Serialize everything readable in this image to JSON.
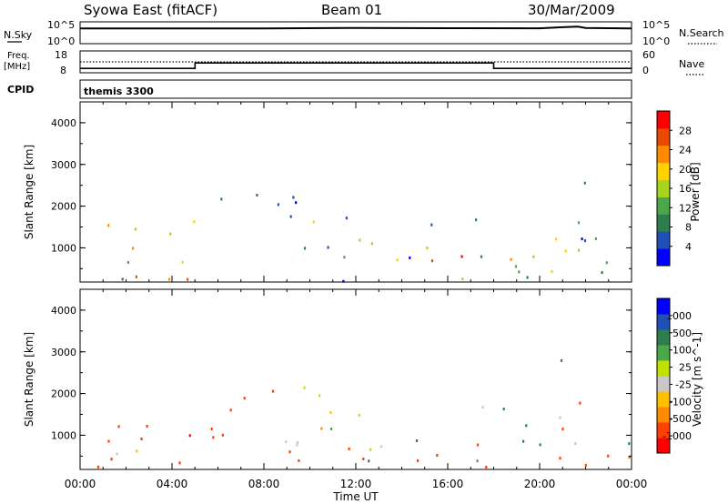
{
  "header": {
    "title": "Syowa East (fitACF)",
    "beam": "Beam 01",
    "date": "30/Mar/2009"
  },
  "noise_panel": {
    "left_label": "N.Sky",
    "left_ticks": [
      "10^5",
      "10^0"
    ],
    "right_label": "N.Search",
    "right_ticks": [
      "10^5",
      "10^0"
    ]
  },
  "freq_panel": {
    "left_label_1": "Freq.",
    "left_label_2": "[MHz]",
    "left_ticks": [
      "18",
      "8"
    ],
    "right_label": "Nave",
    "right_ticks": [
      "60",
      "0"
    ]
  },
  "cpid": {
    "label": "CPID",
    "program": "themis 3300"
  },
  "colors": {
    "power_scale": [
      "#0000ff",
      "#1f4fb8",
      "#2e7d4f",
      "#4aa84a",
      "#a8d41e",
      "#ffd200",
      "#ff8c00",
      "#e84a00",
      "#ff0000"
    ],
    "velocity_scale": [
      "#ff0000",
      "#ff4000",
      "#ff8c00",
      "#ffc000",
      "#c8c8c8",
      "#c0e000",
      "#4aa84a",
      "#2e7d4f",
      "#1f4fb8",
      "#0000ff"
    ],
    "ground_scatter": "#c8c8c8"
  },
  "chart_data": [
    {
      "type": "line",
      "panel": "noise",
      "y_scale": "log",
      "ylim": [
        1,
        100000
      ],
      "x_start": "00:00",
      "x_end": "24:00",
      "series": [
        {
          "time": [
            "00:00",
            "04:00",
            "08:00",
            "12:00",
            "16:00",
            "20:00",
            "21:00",
            "21:40",
            "22:00",
            "24:00"
          ],
          "values": [
            3000,
            3200,
            3100,
            4000,
            3500,
            3300,
            6000,
            8000,
            4000,
            3200
          ]
        }
      ]
    },
    {
      "type": "line",
      "panel": "frequency_nave",
      "left_ylim": [
        8,
        18
      ],
      "right_ylim": [
        0,
        60
      ],
      "series": [
        {
          "quantity": "frequency",
          "time": [
            "00:00",
            "05:00",
            "05:00",
            "18:00",
            "18:00",
            "24:00"
          ],
          "values": [
            10,
            10,
            12.5,
            12.5,
            10,
            10
          ]
        },
        {
          "quantity": "nave",
          "time": [
            "00:00",
            "24:00"
          ],
          "values": [
            30,
            30
          ]
        }
      ]
    },
    {
      "type": "heatmap",
      "panel": "power",
      "xlabel": "",
      "ylabel": "Slant Range [km]",
      "xlim": [
        "00:00",
        "24:00"
      ],
      "ylim": [
        180,
        4500
      ],
      "x_tick_labels": [
        "00:00",
        "04:00",
        "08:00",
        "12:00",
        "16:00",
        "20:00",
        "00:00"
      ],
      "y_tick_labels": [
        "1000",
        "2000",
        "3000",
        "4000"
      ],
      "colorbar_label": "Power [dB]",
      "colorbar_ticks": [
        "28",
        "24",
        "20",
        "16",
        "12",
        "8",
        "4"
      ],
      "colorbar_range": [
        0,
        30
      ],
      "regions": [
        {
          "t0": 0.0,
          "t1": 5.0,
          "r0": 200,
          "r1": 1700,
          "value": 18,
          "spread": 12
        },
        {
          "t0": 0.5,
          "t1": 4.5,
          "r0": 200,
          "r1": 420,
          "value": 26,
          "spread": 6
        },
        {
          "t0": 0.0,
          "t1": 4.5,
          "r0": 650,
          "r1": 950,
          "value": 20,
          "spread": 10
        },
        {
          "t0": 5.0,
          "t1": 12.0,
          "r0": 1500,
          "r1": 2300,
          "value": 8,
          "spread": 6
        },
        {
          "t0": 9.5,
          "t1": 13.0,
          "r0": 1550,
          "r1": 1950,
          "value": 10,
          "spread": 8
        },
        {
          "t0": 11.7,
          "t1": 12.1,
          "r0": 3000,
          "r1": 3400,
          "value": 10,
          "spread": 6
        },
        {
          "t0": 12.0,
          "t1": 19.5,
          "r0": 1550,
          "r1": 1750,
          "value": 16,
          "spread": 10
        },
        {
          "t0": 12.5,
          "t1": 20.0,
          "r0": 600,
          "r1": 900,
          "value": 22,
          "spread": 8
        },
        {
          "t0": 15.0,
          "t1": 20.0,
          "r0": 250,
          "r1": 600,
          "value": 14,
          "spread": 10
        },
        {
          "t0": 20.6,
          "t1": 22.0,
          "r0": 300,
          "r1": 3500,
          "value": 14,
          "spread": 8
        },
        {
          "t0": 22.0,
          "t1": 24.0,
          "r0": 300,
          "r1": 1700,
          "value": 10,
          "spread": 8
        },
        {
          "t0": 9.0,
          "t1": 22.0,
          "r0": 200,
          "r1": 1300,
          "value": 10,
          "spread": 8
        }
      ]
    },
    {
      "type": "heatmap",
      "panel": "velocity",
      "xlabel": "Time UT",
      "ylabel": "Slant Range [km]",
      "xlim": [
        "00:00",
        "24:00"
      ],
      "ylim": [
        180,
        4500
      ],
      "x_tick_labels": [
        "00:00",
        "04:00",
        "08:00",
        "12:00",
        "16:00",
        "20:00",
        "00:00"
      ],
      "y_tick_labels": [
        "1000",
        "2000",
        "3000",
        "4000"
      ],
      "colorbar_label": "Velocity [m s^-1]",
      "colorbar_ticks": [
        "1000",
        "500",
        "100",
        "25",
        "-25",
        "-100",
        "-500",
        "-1000"
      ],
      "colorbar_range": [
        -1000,
        1000
      ],
      "regions": [
        {
          "t0": 0.0,
          "t1": 5.0,
          "r0": 200,
          "r1": 1700,
          "value": -300,
          "spread": 300
        },
        {
          "t0": 0.0,
          "t1": 4.5,
          "r0": 650,
          "r1": 950,
          "value": -150,
          "spread": 200
        },
        {
          "t0": 5.0,
          "t1": 9.5,
          "r0": 800,
          "r1": 2300,
          "value": -200,
          "spread": 250
        },
        {
          "t0": 8.0,
          "t1": 13.0,
          "r0": 1500,
          "r1": 2200,
          "value": 0,
          "spread": 40
        },
        {
          "t0": 11.7,
          "t1": 12.1,
          "r0": 3000,
          "r1": 3400,
          "value": -400,
          "spread": 300
        },
        {
          "t0": 12.0,
          "t1": 19.5,
          "r0": 1550,
          "r1": 1750,
          "value": 80,
          "spread": 150
        },
        {
          "t0": 12.5,
          "t1": 20.0,
          "r0": 600,
          "r1": 900,
          "value": 150,
          "spread": 150
        },
        {
          "t0": 15.0,
          "t1": 20.0,
          "r0": 250,
          "r1": 600,
          "value": -150,
          "spread": 200
        },
        {
          "t0": 20.6,
          "t1": 22.0,
          "r0": 300,
          "r1": 3500,
          "value": 0,
          "spread": 900
        },
        {
          "t0": 22.0,
          "t1": 24.0,
          "r0": 300,
          "r1": 1700,
          "value": -100,
          "spread": 250
        },
        {
          "t0": 9.0,
          "t1": 22.0,
          "r0": 200,
          "r1": 1300,
          "value": -100,
          "spread": 250
        }
      ]
    }
  ]
}
